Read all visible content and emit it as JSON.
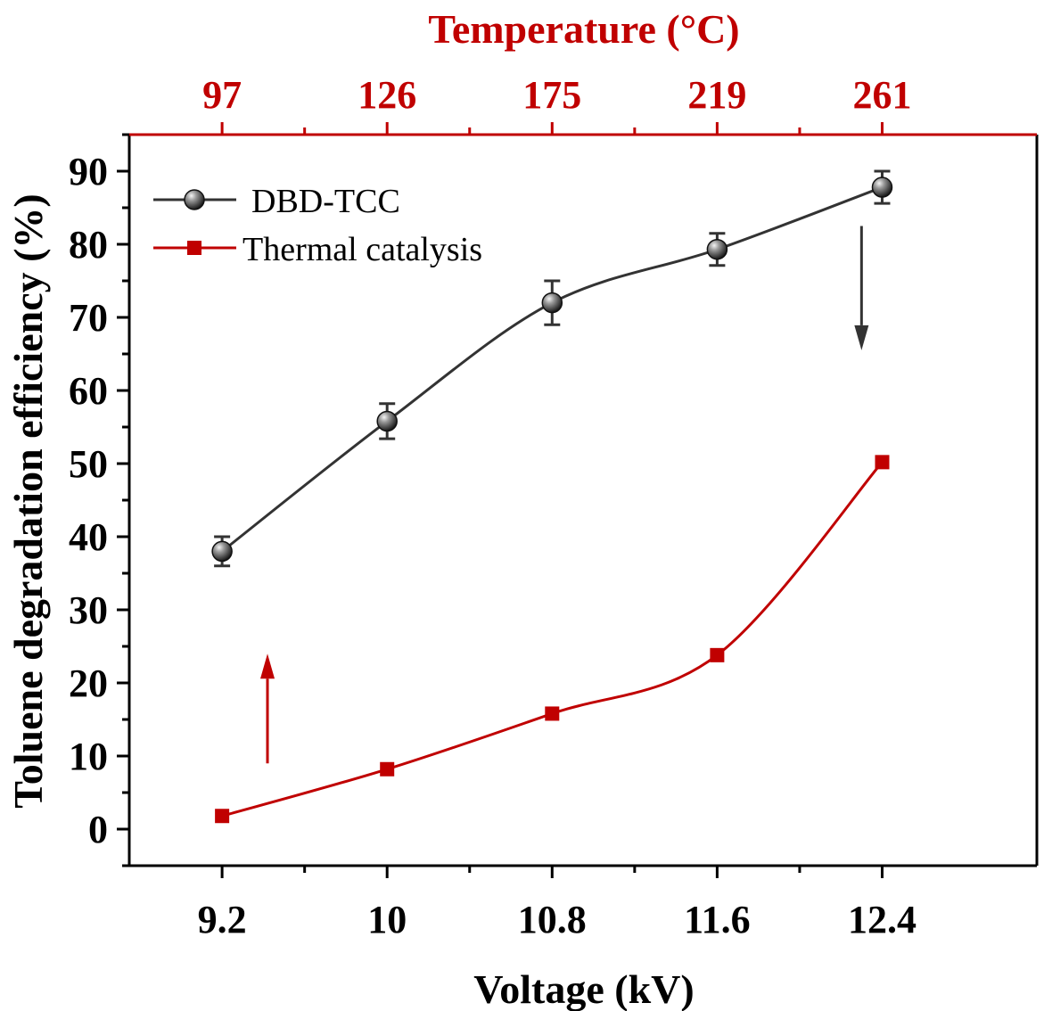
{
  "chart_data": {
    "type": "line",
    "xlabel": "Voltage (kV)",
    "ylabel": "Toluene degradation efficiency (%)",
    "top_xlabel": "Temperature (°C)",
    "x": [
      9.2,
      10.0,
      10.8,
      11.6,
      12.4
    ],
    "x_tick_labels": [
      "9.2",
      "10",
      "10.8",
      "11.6",
      "12.4"
    ],
    "xlim": [
      8.75,
      13.15
    ],
    "top_ticks": [
      {
        "x": 9.2,
        "label": "97"
      },
      {
        "x": 10.0,
        "label": "126"
      },
      {
        "x": 10.8,
        "label": "175"
      },
      {
        "x": 11.6,
        "label": "219"
      },
      {
        "x": 12.4,
        "label": "261"
      }
    ],
    "ylim": [
      -5,
      95
    ],
    "y_ticks": [
      0,
      10,
      20,
      30,
      40,
      50,
      60,
      70,
      80,
      90
    ],
    "y_tick_labels": [
      "0",
      "10",
      "20",
      "30",
      "40",
      "50",
      "60",
      "70",
      "80",
      "90"
    ],
    "grid": false,
    "legend_position": "top-left",
    "series": [
      {
        "name": "DBD-TCC",
        "color": "#333333",
        "marker": "sphere",
        "values": [
          38.0,
          55.8,
          72.0,
          79.3,
          87.8
        ],
        "errors": [
          2.0,
          2.4,
          3.0,
          2.2,
          2.2
        ]
      },
      {
        "name": "Thermal catalysis",
        "color": "#c00000",
        "marker": "square",
        "values": [
          1.8,
          8.2,
          15.8,
          23.8,
          50.2
        ],
        "errors": [
          0,
          0,
          0,
          0,
          0
        ]
      }
    ],
    "annotations": [
      {
        "type": "arrow",
        "direction": "down",
        "color": "#333333",
        "x": 12.3,
        "y_from": 82.5,
        "y_to": 65.5
      },
      {
        "type": "arrow",
        "direction": "up",
        "color": "#c00000",
        "x": 9.42,
        "y_from": 9,
        "y_to": 24
      }
    ]
  }
}
